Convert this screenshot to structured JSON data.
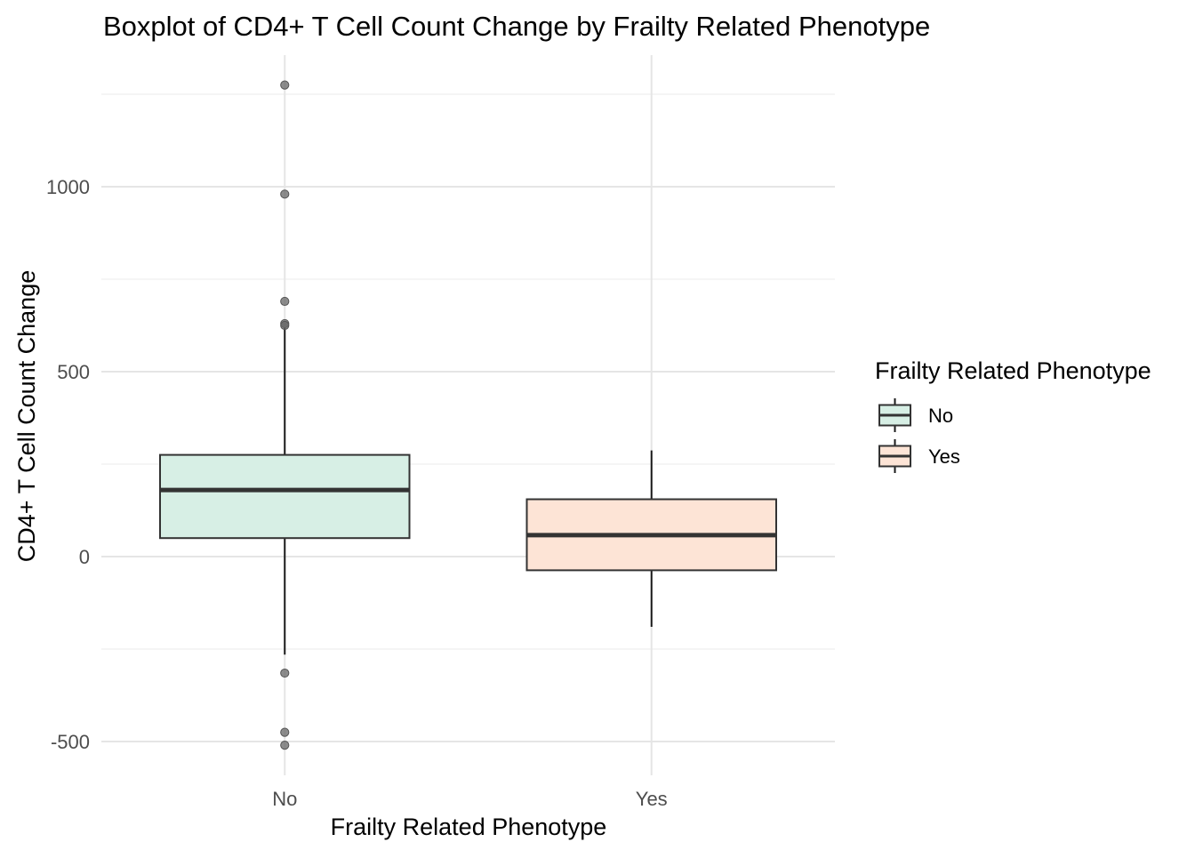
{
  "chart_data": {
    "type": "box",
    "title": "Boxplot of CD4+ T Cell Count Change by Frailty Related Phenotype",
    "xlabel": "Frailty Related Phenotype",
    "ylabel": "CD4+ T Cell Count Change",
    "categories": [
      "No",
      "Yes"
    ],
    "ylim": [
      -590,
      1300
    ],
    "yticks": [
      -500,
      0,
      500,
      1000
    ],
    "ytick_labels": [
      "-500",
      "0",
      "500",
      "1000"
    ],
    "grid": true,
    "legend": {
      "title": "Frailty Related Phenotype",
      "position": "right",
      "entries": [
        "No",
        "Yes"
      ]
    },
    "series": [
      {
        "name": "No",
        "color": "#66C2A5",
        "fill": "#d7efe5",
        "whisker_low": -265,
        "q1": 50,
        "median": 180,
        "q3": 275,
        "whisker_high": 620,
        "outliers": [
          1275,
          980,
          690,
          630,
          625,
          -315,
          -475,
          -510
        ]
      },
      {
        "name": "Yes",
        "color": "#FC8D62",
        "fill": "#fde4d6",
        "whisker_low": -190,
        "q1": -37,
        "median": 58,
        "q3": 155,
        "whisker_high": 287,
        "outliers": []
      }
    ]
  }
}
